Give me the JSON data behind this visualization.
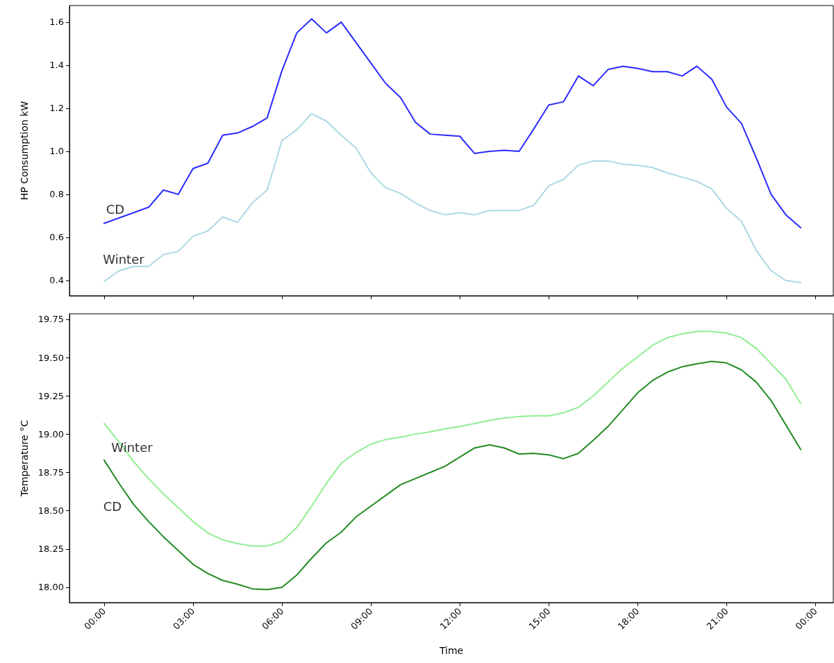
{
  "chart_data": [
    {
      "type": "line",
      "ylabel": "HP Consumption kW",
      "x": [
        0,
        0.5,
        1,
        1.5,
        2,
        2.5,
        3,
        3.5,
        4,
        4.5,
        5,
        5.5,
        6,
        6.5,
        7,
        7.5,
        8,
        8.5,
        9,
        9.5,
        10,
        10.5,
        11,
        11.5,
        12,
        12.5,
        13,
        13.5,
        14,
        14.5,
        15,
        15.5,
        16,
        16.5,
        17,
        17.5,
        18,
        18.5,
        19,
        19.5,
        20,
        20.5,
        21,
        21.5,
        22,
        22.5,
        23,
        23.5
      ],
      "series": [
        {
          "name": "CD",
          "color": "#2a2aff",
          "values": [
            0.665,
            0.69,
            0.715,
            0.74,
            0.82,
            0.8,
            0.92,
            0.945,
            1.075,
            1.085,
            1.115,
            1.155,
            1.375,
            1.55,
            1.615,
            1.55,
            1.6,
            1.505,
            1.41,
            1.315,
            1.25,
            1.135,
            1.08,
            1.075,
            1.07,
            0.99,
            1.0,
            1.005,
            1.0,
            1.105,
            1.215,
            1.23,
            1.35,
            1.305,
            1.38,
            1.395,
            1.385,
            1.37,
            1.37,
            1.35,
            1.395,
            1.335,
            1.205,
            1.13,
            0.97,
            0.8,
            0.705,
            0.645
          ]
        },
        {
          "name": "Winter",
          "color": "#add8e6",
          "values": [
            0.395,
            0.445,
            0.465,
            0.465,
            0.52,
            0.535,
            0.605,
            0.63,
            0.695,
            0.67,
            0.76,
            0.82,
            1.05,
            1.1,
            1.175,
            1.14,
            1.075,
            1.015,
            0.9,
            0.83,
            0.805,
            0.76,
            0.725,
            0.705,
            0.715,
            0.705,
            0.725,
            0.725,
            0.725,
            0.75,
            0.84,
            0.87,
            0.935,
            0.955,
            0.955,
            0.94,
            0.935,
            0.925,
            0.9,
            0.88,
            0.86,
            0.825,
            0.735,
            0.675,
            0.54,
            0.445,
            0.4,
            0.39
          ]
        }
      ],
      "xlim": [
        -1.17,
        24.6
      ],
      "xticks": [
        {
          "value": 0,
          "label": null
        },
        {
          "value": 3,
          "label": null
        },
        {
          "value": 6,
          "label": null
        },
        {
          "value": 9,
          "label": null
        },
        {
          "value": 12,
          "label": null
        },
        {
          "value": 15,
          "label": null
        },
        {
          "value": 18,
          "label": null
        },
        {
          "value": 21,
          "label": null
        },
        {
          "value": 24,
          "label": null
        }
      ],
      "ylim": [
        0.329,
        1.677
      ],
      "yticks": [
        {
          "value": 0.4,
          "label": "0.4"
        },
        {
          "value": 0.6,
          "label": "0.6"
        },
        {
          "value": 0.8,
          "label": "0.8"
        },
        {
          "value": 1.0,
          "label": "1.0"
        },
        {
          "value": 1.2,
          "label": "1.2"
        },
        {
          "value": 1.4,
          "label": "1.4"
        },
        {
          "value": 1.6,
          "label": "1.6"
        }
      ],
      "tick_labels": "y",
      "grid": false,
      "legend": false,
      "marker": "none",
      "line_style": "solid"
    },
    {
      "type": "line",
      "xlabel": "Time",
      "ylabel": "Temperature °C",
      "x": [
        0,
        0.5,
        1,
        1.5,
        2,
        2.5,
        3,
        3.5,
        4,
        4.5,
        5,
        5.5,
        6,
        6.5,
        7,
        7.5,
        8,
        8.5,
        9,
        9.5,
        10,
        10.5,
        11,
        11.5,
        12,
        12.5,
        13,
        13.5,
        14,
        14.5,
        15,
        15.5,
        16,
        16.5,
        17,
        17.5,
        18,
        18.5,
        19,
        19.5,
        20,
        20.5,
        21,
        21.5,
        22,
        22.5,
        23,
        23.5
      ],
      "series": [
        {
          "name": "Winter",
          "color": "#90ee90",
          "values": [
            19.07,
            18.95,
            18.82,
            18.71,
            18.61,
            18.52,
            18.43,
            18.355,
            18.31,
            18.285,
            18.27,
            18.27,
            18.3,
            18.39,
            18.53,
            18.68,
            18.81,
            18.88,
            18.935,
            18.965,
            18.98,
            19.0,
            19.015,
            19.035,
            19.05,
            19.07,
            19.09,
            19.105,
            19.115,
            19.12,
            19.12,
            19.14,
            19.175,
            19.25,
            19.34,
            19.43,
            19.505,
            19.58,
            19.63,
            19.655,
            19.67,
            19.67,
            19.66,
            19.63,
            19.56,
            19.46,
            19.36,
            19.2
          ]
        },
        {
          "name": "CD",
          "color": "#228b22",
          "values": [
            18.83,
            18.68,
            18.54,
            18.43,
            18.33,
            18.24,
            18.15,
            18.09,
            18.045,
            18.02,
            17.99,
            17.985,
            18.0,
            18.08,
            18.19,
            18.29,
            18.36,
            18.46,
            18.53,
            18.6,
            18.67,
            18.71,
            18.75,
            18.79,
            18.85,
            18.91,
            18.93,
            18.91,
            18.87,
            18.875,
            18.865,
            18.84,
            18.875,
            18.96,
            19.05,
            19.16,
            19.27,
            19.35,
            19.405,
            19.44,
            19.46,
            19.475,
            19.465,
            19.42,
            19.34,
            19.22,
            19.06,
            18.9
          ]
        }
      ],
      "xlim": [
        -1.17,
        24.6
      ],
      "xticks": [
        {
          "value": 0,
          "label": "00:00"
        },
        {
          "value": 3,
          "label": "03:00"
        },
        {
          "value": 6,
          "label": "06:00"
        },
        {
          "value": 9,
          "label": "09:00"
        },
        {
          "value": 12,
          "label": "12:00"
        },
        {
          "value": 15,
          "label": "15:00"
        },
        {
          "value": 18,
          "label": "18:00"
        },
        {
          "value": 21,
          "label": "21:00"
        },
        {
          "value": 24,
          "label": "00:00"
        }
      ],
      "ylim": [
        17.9,
        19.786
      ],
      "yticks": [
        {
          "value": 18.0,
          "label": "18.00"
        },
        {
          "value": 18.25,
          "label": "18.25"
        },
        {
          "value": 18.5,
          "label": "18.50"
        },
        {
          "value": 18.75,
          "label": "18.75"
        },
        {
          "value": 19.0,
          "label": "19.00"
        },
        {
          "value": 19.25,
          "label": "19.25"
        },
        {
          "value": 19.5,
          "label": "19.50"
        },
        {
          "value": 19.75,
          "label": "19.75"
        }
      ],
      "grid": false,
      "legend": false,
      "marker": "none",
      "line_style": "solid"
    }
  ]
}
